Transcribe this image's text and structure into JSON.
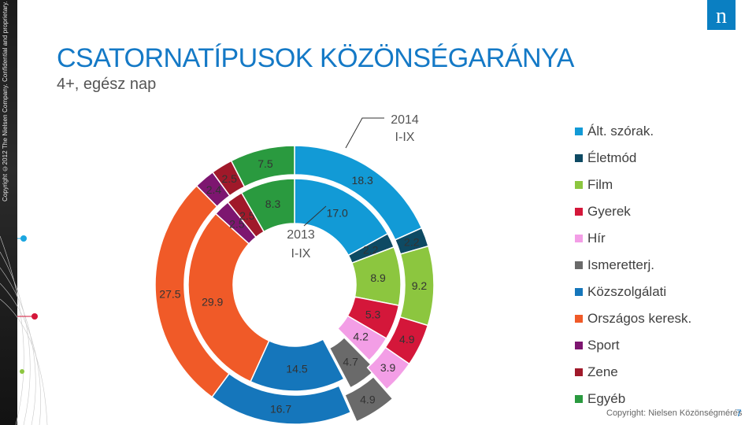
{
  "side_note": "Copyright ©2012 The Nielsen Company. Confidential and proprietary.",
  "logo": {
    "letter": "n",
    "color": "#0a7fc2"
  },
  "title": "CSATORNATÍPUSOK KÖZÖNSÉGARÁNYA",
  "subtitle": "4+, egész nap",
  "footer": {
    "copyright": "Copyright: Nielsen Közönségmérés",
    "page": "7"
  },
  "colors": {
    "title": "#1479c6",
    "Ált. szórak.": "#129ad6",
    "Életmód": "#0e4a63",
    "Film": "#8cc63f",
    "Gyerek": "#d4173a",
    "Hír": "#f39ee6",
    "Ismeretterj.": "#6a6a6a",
    "Közszolgálati": "#1576bb",
    "Országos keresk.": "#f05a28",
    "Sport": "#7d1670",
    "Zene": "#a0192a",
    "Egyéb": "#2a9a3f"
  },
  "chart_data": {
    "type": "doughnut",
    "categories": [
      "Ált. szórak.",
      "Életmód",
      "Film",
      "Gyerek",
      "Hír",
      "Ismeretterj.",
      "Közszolgálati",
      "Országos keresk.",
      "Sport",
      "Zene",
      "Egyéb"
    ],
    "series": [
      {
        "name": "2013 I-IX",
        "ring": "inner",
        "values": [
          17.0,
          2.2,
          8.9,
          5.3,
          4.2,
          4.7,
          14.5,
          29.9,
          2.5,
          2.5,
          8.3
        ]
      },
      {
        "name": "2014 I-IX",
        "ring": "outer",
        "values": [
          18.3,
          2.2,
          9.2,
          4.9,
          3.9,
          4.9,
          16.7,
          27.5,
          2.4,
          2.5,
          7.5
        ]
      }
    ],
    "legend": "right",
    "labels": {
      "inner": [
        "17.0",
        "2.2",
        "8.9",
        "5.3",
        "4.2",
        "4.7",
        "14.5",
        "29.9",
        "2.5",
        "2.5",
        "8.3"
      ],
      "outer": [
        "18.3",
        "2.2",
        "9.2",
        "4.9",
        "3.9",
        "4.9",
        "16.7",
        "27.5",
        "2.4",
        "2.5",
        "7.5"
      ]
    },
    "series_labels": {
      "inner": [
        "2013",
        "I-IX"
      ],
      "outer": [
        "2014",
        "I-IX"
      ]
    }
  }
}
